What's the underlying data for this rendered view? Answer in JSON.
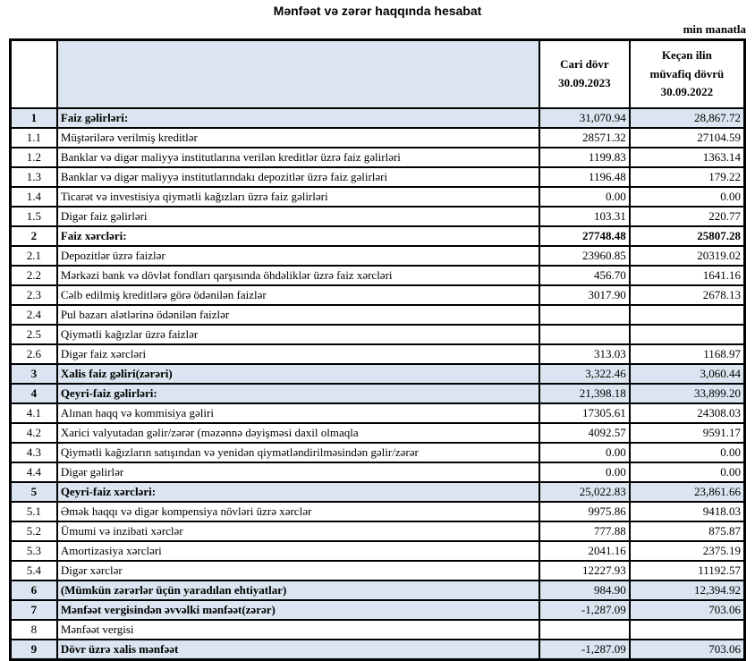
{
  "page": {
    "title": "Mənfəət və zərər haqqında hesabat",
    "unit_note": "min manatla"
  },
  "colors": {
    "row_highlight": "#dbe5f1",
    "border": "#000000",
    "text": "#000000"
  },
  "table": {
    "header": {
      "number_col": "",
      "description_col": "",
      "current_lines": [
        "Cari dövr",
        "30.09.2023"
      ],
      "prior_lines": [
        "Keçən ilin",
        "müvafiq dövrü",
        "30.09.2022"
      ]
    },
    "rows": [
      {
        "num": "1",
        "label": "Faiz gəlirləri:",
        "current": "31,070.94",
        "prior": "28,867.72",
        "section": true,
        "highlighted": true
      },
      {
        "num": "1.1",
        "label": "Müştərilərə verilmiş kreditlər",
        "current": "28571.32",
        "prior": "27104.59"
      },
      {
        "num": "1.2",
        "label": "Banklar və digər maliyyə institutlarına verilən kreditlər üzrə faiz gəlirləri",
        "current": "1199.83",
        "prior": "1363.14"
      },
      {
        "num": "1.3",
        "label": "Banklar və digər maliyyə institutlarındakı depozitlər üzrə faiz gəlirləri",
        "current": "1196.48",
        "prior": "179.22"
      },
      {
        "num": "1.4",
        "label": "Ticarət və investisiya qiymətli kağızları üzrə faiz gəlirləri",
        "current": "0.00",
        "prior": "0.00"
      },
      {
        "num": "1.5",
        "label": "Digər faiz gəlirləri",
        "current": "103.31",
        "prior": "220.77"
      },
      {
        "num": "2",
        "label": "Faiz xərcləri:",
        "current": "27748.48",
        "prior": "25807.28",
        "section": true,
        "highlighted": false,
        "value_bold": true
      },
      {
        "num": "2.1",
        "label": "Depozitlər üzrə faizlər",
        "current": "23960.85",
        "prior": "20319.02"
      },
      {
        "num": "2.2",
        "label": "Mərkəzi bank və dövlət fondları qarşısında öhdəliklər üzrə faiz xərcləri",
        "current": "456.70",
        "prior": "1641.16"
      },
      {
        "num": "2.3",
        "label": "Cəlb edilmiş kreditlərə görə ödənilən faizlər",
        "current": "3017.90",
        "prior": "2678.13"
      },
      {
        "num": "2.4",
        "label": "Pul bazarı alətlərinə ödənilən faizlər",
        "current": "",
        "prior": ""
      },
      {
        "num": "2.5",
        "label": "Qiymətli kağızlar üzrə faizlər",
        "current": "",
        "prior": ""
      },
      {
        "num": "2.6",
        "label": "Digər faiz xərcləri",
        "current": "313.03",
        "prior": "1168.97"
      },
      {
        "num": "3",
        "label": "Xalis faiz gəliri(zərəri)",
        "current": "3,322.46",
        "prior": "3,060.44",
        "section": true,
        "highlighted": true
      },
      {
        "num": "4",
        "label": "Qeyri-faiz gəlirləri:",
        "current": "21,398.18",
        "prior": "33,899.20",
        "section": true,
        "highlighted": true
      },
      {
        "num": "4.1",
        "label": "Alınan haqq və kommisiya gəliri",
        "current": "17305.61",
        "prior": "24308.03"
      },
      {
        "num": "4.2",
        "label": "Xarici valyutadan gəlir/zərər (məzənnə dəyişməsi daxil olmaqla",
        "current": "4092.57",
        "prior": "9591.17"
      },
      {
        "num": "4.3",
        "label": "Qiymətli kağızların satışından və yenidən qiymətləndirilməsindən gəlir/zərər",
        "current": "0.00",
        "prior": "0.00"
      },
      {
        "num": "4.4",
        "label": "Digər gəlirlər",
        "current": "0.00",
        "prior": "0.00"
      },
      {
        "num": "5",
        "label": "Qeyri-faiz xərcləri:",
        "current": "25,022.83",
        "prior": "23,861.66",
        "section": true,
        "highlighted": true
      },
      {
        "num": "5.1",
        "label": "Əmək haqqı və digər kompensiya növləri üzrə xərclər",
        "current": "9975.86",
        "prior": "9418.03"
      },
      {
        "num": "5.2",
        "label": "Ümumi və inzibati xərclər",
        "current": "777.88",
        "prior": "875.87"
      },
      {
        "num": "5.3",
        "label": "Amortizasiya xərcləri",
        "current": "2041.16",
        "prior": "2375.19"
      },
      {
        "num": "5.4",
        "label": "Digər xərclər",
        "current": "12227.93",
        "prior": "11192.57"
      },
      {
        "num": "6",
        "label": "(Mümkün zərərlər üçün yaradılan ehtiyatlar)",
        "current": "984.90",
        "prior": "12,394.92",
        "section": true,
        "highlighted": true
      },
      {
        "num": "7",
        "label": "Mənfəət vergisindən əvvəlki mənfəət(zərər)",
        "current": "-1,287.09",
        "prior": "703.06",
        "section": true,
        "highlighted": true
      },
      {
        "num": "8",
        "label": "Mənfəət vergisi",
        "current": "",
        "prior": ""
      },
      {
        "num": "9",
        "label": "Dövr üzrə xalis mənfəət",
        "current": "-1,287.09",
        "prior": "703.06",
        "section": true,
        "highlighted": true
      }
    ]
  }
}
